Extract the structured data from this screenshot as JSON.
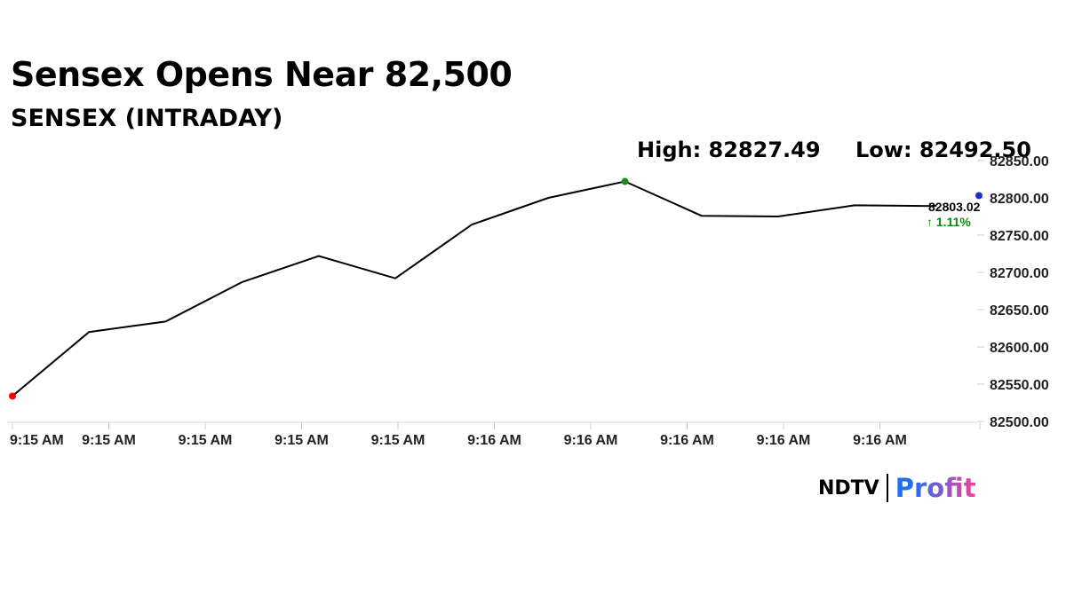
{
  "header": {
    "headline": "Sensex Opens Near 82,500",
    "subtitle": "SENSEX (INTRADAY)"
  },
  "stats": {
    "high": "High: 82827.49",
    "low": "Low: 82492.50"
  },
  "last": {
    "value": "82803.02",
    "change": "↑ 1.11%"
  },
  "brand": {
    "ndtv": "NDTV",
    "profit": "Profit"
  },
  "colors": {
    "line": "#000000",
    "start_marker": "#ff0000",
    "high_marker": "#1a8a1a",
    "last_marker": "#1f2fd0",
    "positive": "#0a8a0a",
    "profit_gradient_start": "#1e6ff5",
    "profit_gradient_end": "#e5469a"
  },
  "chart_data": {
    "type": "line",
    "title": "SENSEX (INTRADAY)",
    "x": [
      0,
      1,
      2,
      3,
      4,
      5,
      6,
      7,
      8,
      9,
      10,
      11,
      12
    ],
    "y": [
      82534,
      82620,
      82634,
      82687,
      82722,
      82692,
      82764,
      82800,
      82822,
      82776,
      82775,
      82790,
      82789
    ],
    "last_point": {
      "x": 12.6,
      "y": 82803.02
    },
    "x_tick_labels": [
      "9:15 AM",
      "9:15 AM",
      "9:15 AM",
      "9:15 AM",
      "9:15 AM",
      "9:16 AM",
      "9:16 AM",
      "9:16 AM",
      "9:16 AM",
      "9:16 AM"
    ],
    "y_ticks": [
      "82500.00",
      "82550.00",
      "82600.00",
      "82650.00",
      "82700.00",
      "82750.00",
      "82800.00",
      "82850.00"
    ],
    "ylim": [
      82500,
      82850
    ],
    "y_axis_side": "right",
    "grid": false
  }
}
